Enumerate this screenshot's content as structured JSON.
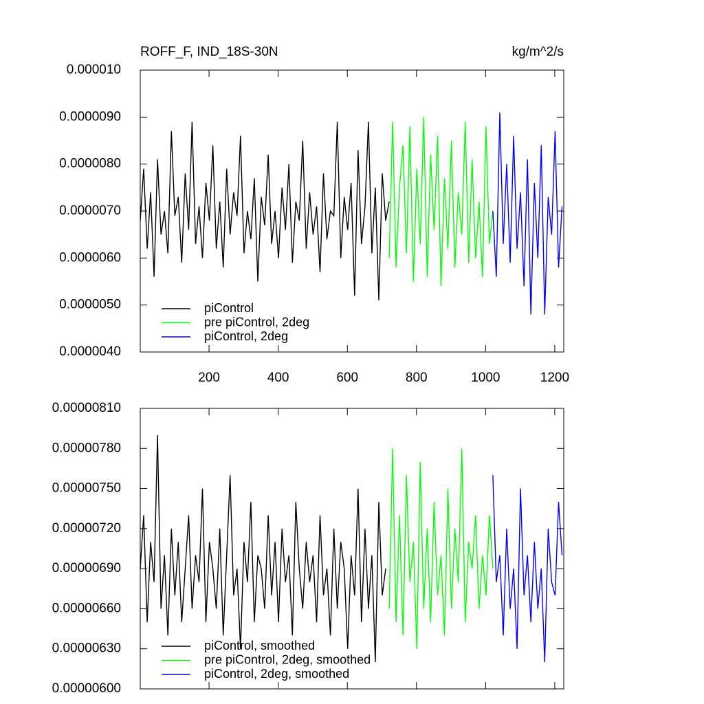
{
  "chart_data": [
    {
      "type": "line",
      "title": "ROFF_F, IND_18S-30N",
      "units": "kg/m^2/s",
      "xlim": [
        1,
        1226
      ],
      "xticks": [
        200,
        400,
        600,
        800,
        1000,
        1200
      ],
      "ylim": [
        4e-06,
        1e-05
      ],
      "yticks": [
        {
          "value": 4e-06,
          "label": "0.0000040"
        },
        {
          "value": 5e-06,
          "label": "0.0000050"
        },
        {
          "value": 6e-06,
          "label": "0.0000060"
        },
        {
          "value": 7e-06,
          "label": "0.0000070"
        },
        {
          "value": 8e-06,
          "label": "0.0000080"
        },
        {
          "value": 9e-06,
          "label": "0.0000090"
        },
        {
          "value": 1e-05,
          "label": "0.000010"
        }
      ],
      "series": [
        {
          "name": "piControl",
          "color": "#000000",
          "x": [
            1,
            11,
            21,
            31,
            41,
            51,
            61,
            71,
            81,
            91,
            101,
            111,
            121,
            131,
            141,
            151,
            161,
            171,
            181,
            191,
            201,
            211,
            221,
            231,
            241,
            251,
            261,
            271,
            281,
            291,
            301,
            311,
            321,
            331,
            341,
            351,
            361,
            371,
            381,
            391,
            401,
            411,
            421,
            431,
            441,
            451,
            461,
            471,
            481,
            491,
            501,
            511,
            521,
            531,
            541,
            551,
            561,
            571,
            581,
            591,
            601,
            611,
            621,
            631,
            641,
            651,
            661,
            671,
            681,
            691,
            701,
            711,
            721
          ],
          "values": [
            6.8e-06,
            7.9e-06,
            6.2e-06,
            7.4e-06,
            5.6e-06,
            8.1e-06,
            6.5e-06,
            7e-06,
            6.1e-06,
            8.7e-06,
            6.9e-06,
            7.3e-06,
            5.9e-06,
            7.8e-06,
            6.6e-06,
            8.9e-06,
            6.3e-06,
            7.1e-06,
            6e-06,
            7.6e-06,
            6.8e-06,
            8.4e-06,
            6.2e-06,
            7.2e-06,
            5.8e-06,
            7.9e-06,
            6.5e-06,
            7.4e-06,
            6.9e-06,
            8.6e-06,
            6.1e-06,
            7e-06,
            6.4e-06,
            7.7e-06,
            5.5e-06,
            7.3e-06,
            6.7e-06,
            8.2e-06,
            6.3e-06,
            7e-06,
            6e-06,
            7.5e-06,
            6.6e-06,
            8e-06,
            5.9e-06,
            7.2e-06,
            6.8e-06,
            8.5e-06,
            6.2e-06,
            7.4e-06,
            6.5e-06,
            7.1e-06,
            5.7e-06,
            7.8e-06,
            6.4e-06,
            7e-06,
            6.9e-06,
            8.9e-06,
            6e-06,
            7.3e-06,
            6.6e-06,
            7.6e-06,
            5.2e-06,
            8.3e-06,
            6.3e-06,
            7.1e-06,
            8.9e-06,
            6.1e-06,
            7.5e-06,
            5.1e-06,
            7.8e-06,
            6.8e-06,
            7.2e-06
          ]
        },
        {
          "name": "pre piControl, 2deg",
          "color": "#00ff00",
          "x": [
            721,
            731,
            741,
            751,
            761,
            771,
            781,
            791,
            801,
            811,
            821,
            831,
            841,
            851,
            861,
            871,
            881,
            891,
            901,
            911,
            921,
            931,
            941,
            951,
            961,
            971,
            981,
            991,
            1001,
            1011,
            1021
          ],
          "values": [
            6e-06,
            8.9e-06,
            5.8e-06,
            7.5e-06,
            8.4e-06,
            6.1e-06,
            8.8e-06,
            5.5e-06,
            7.9e-06,
            6.3e-06,
            9e-06,
            5.6e-06,
            8.2e-06,
            6.6e-06,
            8.6e-06,
            5.4e-06,
            7.7e-06,
            6.2e-06,
            8.5e-06,
            5.8e-06,
            7.4e-06,
            6.5e-06,
            8.9e-06,
            5.9e-06,
            8.1e-06,
            6e-06,
            7.2e-06,
            5.6e-06,
            8.8e-06,
            6.3e-06,
            7e-06
          ]
        },
        {
          "name": "piControl, 2deg",
          "color": "#0000ff",
          "x": [
            1021,
            1031,
            1041,
            1051,
            1061,
            1071,
            1081,
            1091,
            1101,
            1111,
            1121,
            1131,
            1141,
            1151,
            1161,
            1171,
            1181,
            1191,
            1201,
            1211,
            1221
          ],
          "values": [
            7e-06,
            5.6e-06,
            9.1e-06,
            6.3e-06,
            8e-06,
            5.9e-06,
            8.6e-06,
            6.2e-06,
            7.4e-06,
            5.4e-06,
            8.1e-06,
            4.8e-06,
            7.6e-06,
            6e-06,
            8.4e-06,
            4.8e-06,
            7.3e-06,
            6.5e-06,
            8.7e-06,
            5.8e-06,
            7.1e-06
          ]
        }
      ]
    },
    {
      "type": "line",
      "xlim": [
        1,
        1226
      ],
      "xticks": [
        200,
        400,
        600,
        800,
        1000,
        1200
      ],
      "ylim": [
        6e-06,
        8.1e-06
      ],
      "yticks": [
        {
          "value": 6e-06,
          "label": "0.00000600"
        },
        {
          "value": 6.3e-06,
          "label": "0.00000630"
        },
        {
          "value": 6.6e-06,
          "label": "0.00000660"
        },
        {
          "value": 6.9e-06,
          "label": "0.00000690"
        },
        {
          "value": 7.2e-06,
          "label": "0.00000720"
        },
        {
          "value": 7.5e-06,
          "label": "0.00000750"
        },
        {
          "value": 7.8e-06,
          "label": "0.00000780"
        },
        {
          "value": 8.1e-06,
          "label": "0.00000810"
        }
      ],
      "series": [
        {
          "name": "piControl, smoothed",
          "color": "#000000",
          "x": [
            1,
            11,
            21,
            31,
            41,
            51,
            61,
            71,
            81,
            91,
            101,
            111,
            121,
            131,
            141,
            151,
            161,
            171,
            181,
            191,
            201,
            211,
            221,
            231,
            241,
            251,
            261,
            271,
            281,
            291,
            301,
            311,
            321,
            331,
            341,
            351,
            361,
            371,
            381,
            391,
            401,
            411,
            421,
            431,
            441,
            451,
            461,
            471,
            481,
            491,
            501,
            511,
            521,
            531,
            541,
            551,
            561,
            571,
            581,
            591,
            601,
            611,
            621,
            631,
            641,
            651,
            661,
            671,
            681,
            691,
            701,
            711
          ],
          "values": [
            6.9e-06,
            7.3e-06,
            6.5e-06,
            7.1e-06,
            6.8e-06,
            7.9e-06,
            6.6e-06,
            7e-06,
            6.4e-06,
            7.2e-06,
            6.7e-06,
            7.1e-06,
            6.5e-06,
            6.9e-06,
            7.3e-06,
            6.6e-06,
            7e-06,
            6.8e-06,
            7.5e-06,
            6.5e-06,
            7.1e-06,
            6.9e-06,
            6.6e-06,
            7.2e-06,
            6.4e-06,
            7e-06,
            7.6e-06,
            6.7e-06,
            6.9e-06,
            6.3e-06,
            7.1e-06,
            6.8e-06,
            7.4e-06,
            6.5e-06,
            7e-06,
            6.9e-06,
            6.6e-06,
            7.3e-06,
            6.7e-06,
            7.1e-06,
            6.5e-06,
            7.2e-06,
            6.8e-06,
            7e-06,
            6.4e-06,
            7.4e-06,
            6.9e-06,
            6.6e-06,
            7.1e-06,
            6.8e-06,
            7e-06,
            6.5e-06,
            7.3e-06,
            6.7e-06,
            6.9e-06,
            6.4e-06,
            7.2e-06,
            6.6e-06,
            7.1e-06,
            6.9e-06,
            6.3e-06,
            7e-06,
            6.7e-06,
            7.5e-06,
            6.5e-06,
            7.2e-06,
            6.6e-06,
            7e-06,
            6.2e-06,
            7.4e-06,
            6.7e-06,
            6.9e-06
          ]
        },
        {
          "name": "pre piControl, 2deg, smoothed",
          "color": "#00ff00",
          "x": [
            721,
            731,
            741,
            751,
            761,
            771,
            781,
            791,
            801,
            811,
            821,
            831,
            841,
            851,
            861,
            871,
            881,
            891,
            901,
            911,
            921,
            931,
            941,
            951,
            961,
            971,
            981,
            991,
            1001,
            1011,
            1021
          ],
          "values": [
            6.6e-06,
            7.8e-06,
            6.5e-06,
            7.3e-06,
            6.4e-06,
            7.6e-06,
            6.8e-06,
            7.1e-06,
            6.3e-06,
            7.7e-06,
            6.6e-06,
            7.2e-06,
            6.5e-06,
            7.4e-06,
            6.7e-06,
            7e-06,
            6.4e-06,
            7.5e-06,
            6.6e-06,
            7.2e-06,
            6.8e-06,
            7.8e-06,
            6.5e-06,
            7.1e-06,
            6.9e-06,
            7.3e-06,
            6.6e-06,
            7e-06,
            6.7e-06,
            7.3e-06,
            6.9e-06
          ]
        },
        {
          "name": "piControl, 2deg, smoothed",
          "color": "#0000ff",
          "x": [
            1021,
            1031,
            1041,
            1051,
            1061,
            1071,
            1081,
            1091,
            1101,
            1111,
            1121,
            1131,
            1141,
            1151,
            1161,
            1171,
            1181,
            1191,
            1201,
            1211,
            1221
          ],
          "values": [
            7.6e-06,
            6.8e-06,
            7e-06,
            6.4e-06,
            7.2e-06,
            6.6e-06,
            6.9e-06,
            6.3e-06,
            7.5e-06,
            6.7e-06,
            7e-06,
            6.5e-06,
            7.1e-06,
            6.6e-06,
            6.9e-06,
            6.2e-06,
            7.2e-06,
            6.8e-06,
            6.7e-06,
            7.4e-06,
            7e-06
          ]
        }
      ]
    }
  ]
}
